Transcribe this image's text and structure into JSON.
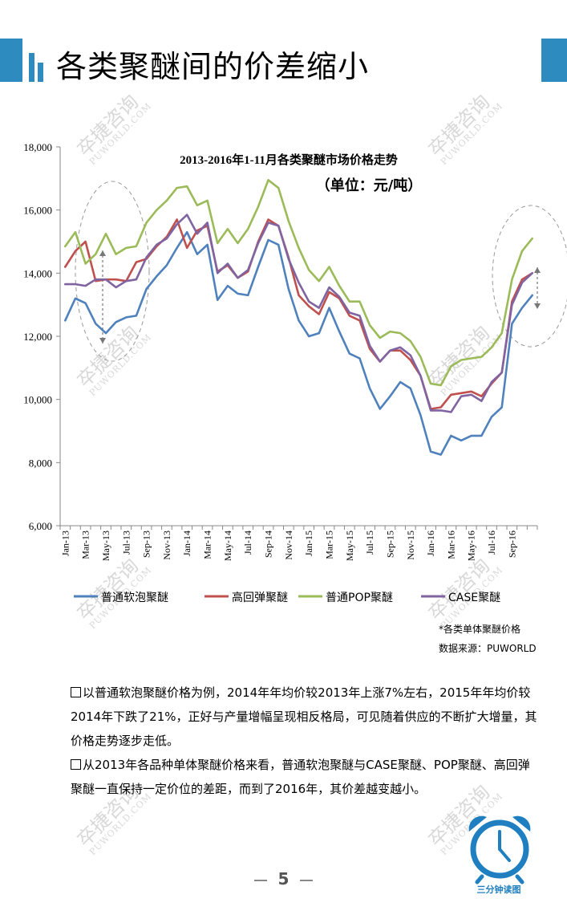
{
  "page": {
    "title": "各类聚醚间的价差缩小",
    "page_number": "5",
    "badge_label": "三分钟读图"
  },
  "watermark": {
    "cn": "卒捷咨询",
    "en": "PUWORLD.COM"
  },
  "chart_data": {
    "type": "line",
    "title": "2013-2016年1-11月各类聚醚市场价格走势",
    "subtitle": "（单位：元/吨）",
    "ylim": [
      6000,
      18000
    ],
    "yticks": [
      "6,000",
      "8,000",
      "10,000",
      "12,000",
      "14,000",
      "16,000",
      "18,000"
    ],
    "x": [
      "Jan-13",
      "Feb-13",
      "Mar-13",
      "Apr-13",
      "May-13",
      "Jun-13",
      "Jul-13",
      "Aug-13",
      "Sep-13",
      "Oct-13",
      "Nov-13",
      "Dec-13",
      "Jan-14",
      "Feb-14",
      "Mar-14",
      "Apr-14",
      "May-14",
      "Jun-14",
      "Jul-14",
      "Aug-14",
      "Sep-14",
      "Oct-14",
      "Nov-14",
      "Dec-14",
      "Jan-15",
      "Feb-15",
      "Mar-15",
      "Apr-15",
      "May-15",
      "Jun-15",
      "Jul-15",
      "Aug-15",
      "Sep-15",
      "Oct-15",
      "Nov-15",
      "Dec-15",
      "Jan-16",
      "Feb-16",
      "Mar-16",
      "Apr-16",
      "May-16",
      "Jun-16",
      "Jul-16",
      "Aug-16",
      "Sep-16",
      "Oct-16",
      "Nov-16"
    ],
    "xtick_labels": [
      "Jan-13",
      "Mar-13",
      "May-13",
      "Jul-13",
      "Sep-13",
      "Nov-13",
      "Jan-14",
      "Mar-14",
      "May-14",
      "Jul-14",
      "Sep-14",
      "Nov-14",
      "Jan-15",
      "Mar-15",
      "May-15",
      "Jul-15",
      "Sep-15",
      "Nov-15",
      "Jan-16",
      "Mar-16",
      "May-16",
      "Jul-16",
      "Sep-16"
    ],
    "series": [
      {
        "name": "普通软泡聚醚",
        "color": "#4f81bd",
        "values": [
          12500,
          13200,
          13050,
          12400,
          12100,
          12450,
          12600,
          12650,
          13500,
          13900,
          14250,
          14800,
          15300,
          14600,
          14900,
          13150,
          13600,
          13350,
          13300,
          14200,
          15050,
          14900,
          13500,
          12500,
          12000,
          12100,
          12900,
          12150,
          11450,
          11300,
          10350,
          9700,
          10100,
          10550,
          10350,
          9500,
          8350,
          8250,
          8850,
          8700,
          8850,
          8850,
          9450,
          9750,
          12400,
          12900,
          13300
        ]
      },
      {
        "name": "高回弹聚醚",
        "color": "#c0504d",
        "values": [
          14200,
          14700,
          15000,
          13750,
          13800,
          13800,
          13750,
          14350,
          14450,
          14850,
          15150,
          15700,
          14800,
          15350,
          15500,
          14050,
          14250,
          13850,
          14050,
          15000,
          15700,
          15500,
          14500,
          13300,
          12950,
          12700,
          13400,
          13200,
          12650,
          12500,
          11600,
          11200,
          11550,
          11550,
          11250,
          10750,
          9700,
          9750,
          10150,
          10200,
          10250,
          10100,
          10500,
          10850,
          13100,
          13800,
          14000
        ]
      },
      {
        "name": "普通POP聚醚",
        "color": "#9bbb59",
        "values": [
          14850,
          15300,
          14300,
          14600,
          15250,
          14600,
          14800,
          14850,
          15600,
          16000,
          16300,
          16700,
          16750,
          16150,
          16300,
          14950,
          15400,
          14950,
          15400,
          16100,
          16950,
          16700,
          15650,
          14800,
          14100,
          13750,
          14200,
          13600,
          13100,
          13100,
          12350,
          11950,
          12150,
          12100,
          11850,
          11350,
          10500,
          10450,
          11050,
          11250,
          11300,
          11350,
          11650,
          12100,
          13800,
          14700,
          15100
        ]
      },
      {
        "name": "CASE聚醚",
        "color": "#8064a2",
        "values": [
          13650,
          13650,
          13600,
          13800,
          13800,
          13550,
          13750,
          13800,
          14500,
          14900,
          15100,
          15550,
          15850,
          15250,
          15600,
          14000,
          14300,
          13850,
          14100,
          14950,
          15600,
          15500,
          14450,
          13700,
          13100,
          12900,
          13550,
          13250,
          12750,
          12650,
          11700,
          11200,
          11550,
          11650,
          11400,
          10750,
          9650,
          9650,
          9600,
          10100,
          10150,
          9950,
          10550,
          10850,
          13000,
          13700,
          14000
        ]
      }
    ],
    "legend_position": "bottom",
    "grid": false,
    "annotations": [
      "*各类单体聚醚价格",
      "数据来源：PUWORLD"
    ]
  },
  "notes": [
    "以普通软泡聚醚价格为例，2014年年均价较2013年上涨7%左右，2015年年均价较2014年下跌了21%，正好与产量增幅呈现相反格局，可见随着供应的不断扩大增量，其价格走势逐步走低。",
    "从2013年各品种单体聚醚价格来看，普通软泡聚醚与CASE聚醚、POP聚醚、高回弹聚醚一直保持一定价位的差距，而到了2016年，其价差越变越小。"
  ]
}
